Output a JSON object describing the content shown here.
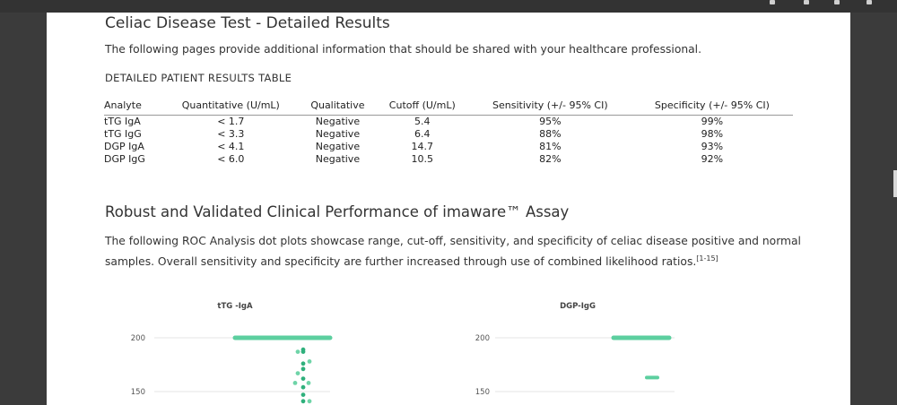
{
  "document": {
    "title": "Celiac Disease Test - Detailed Results",
    "intro": "The following pages provide additional information that should be shared with your healthcare professional.",
    "table_heading": "DETAILED PATIENT RESULTS TABLE",
    "table": {
      "columns": [
        "Analyte",
        "Quantitative (U/mL)",
        "Qualitative",
        "Cutoff (U/mL)",
        "Sensitivity (+/- 95% CI)",
        "Specificity (+/- 95% CI)"
      ],
      "rows": [
        [
          "tTG IgA",
          "< 1.7",
          "Negative",
          "5.4",
          "95%",
          "99%"
        ],
        [
          "tTG IgG",
          "< 3.3",
          "Negative",
          "6.4",
          "88%",
          "98%"
        ],
        [
          "DGP IgA",
          "< 4.1",
          "Negative",
          "14.7",
          "81%",
          "93%"
        ],
        [
          "DGP IgG",
          "< 6.0",
          "Negative",
          "10.5",
          "82%",
          "92%"
        ]
      ]
    },
    "section_title": "Robust and Validated Clinical Performance of imaware™ Assay",
    "section_text": "The following ROC Analysis dot plots showcase range, cut-off, sensitivity, and specificity of celiac disease positive and normal samples. Overall sensitivity and specificity are further increased through use of combined likelihood ratios.",
    "section_ref": "[1-15]"
  },
  "chart_data": [
    {
      "type": "scatter",
      "title": "tTG -IgA",
      "yticks": [
        "200",
        "150"
      ],
      "grid": true,
      "color": "#5ccf9f",
      "values": [
        200,
        189,
        187,
        178,
        176,
        171,
        167,
        162,
        158,
        157,
        154,
        147,
        141
      ]
    },
    {
      "type": "scatter",
      "title": "DGP-IgG",
      "yticks": [
        "200",
        "150"
      ],
      "grid": true,
      "color": "#5ccf9f",
      "values": [
        200,
        163
      ]
    }
  ]
}
